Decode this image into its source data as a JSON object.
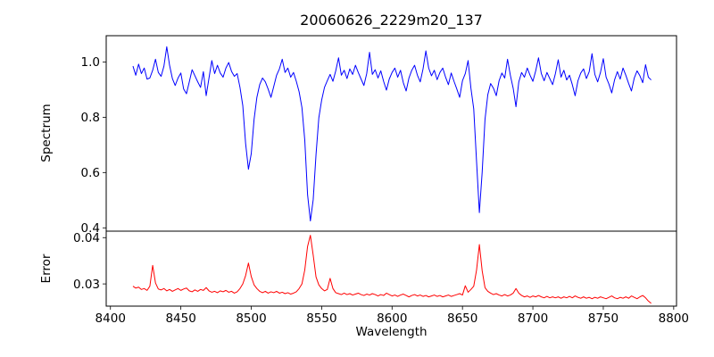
{
  "figure": {
    "background": "#ffffff",
    "text_color": "#000000"
  },
  "chart_data": [
    {
      "type": "line",
      "name": "spectrum",
      "title": "20060626_2229m20_137",
      "ylabel": "Spectrum",
      "color": "#0000ff",
      "line_width": 1,
      "grid": false,
      "legend": "none",
      "x_start": 8416,
      "x_step": 2,
      "xlim": [
        8397,
        8802
      ],
      "ylim": [
        0.388,
        1.095
      ],
      "yticks": [
        1.0,
        0.8,
        0.6,
        0.4
      ],
      "ytick_labels": [
        "1.0",
        "0.8",
        "0.6",
        "0.4"
      ],
      "absorption_lines_note": "Ca II triplet: deep minima near x=8498 (y~0.61), x=8542 (y~0.42), x=8662 (y~0.45)",
      "values": [
        0.985,
        0.952,
        0.992,
        0.958,
        0.978,
        0.938,
        0.942,
        0.97,
        1.01,
        0.962,
        0.948,
        0.985,
        1.055,
        0.988,
        0.94,
        0.915,
        0.942,
        0.96,
        0.902,
        0.885,
        0.928,
        0.972,
        0.95,
        0.928,
        0.908,
        0.965,
        0.878,
        0.942,
        1.005,
        0.958,
        0.988,
        0.96,
        0.945,
        0.978,
        0.998,
        0.966,
        0.948,
        0.958,
        0.908,
        0.842,
        0.705,
        0.612,
        0.668,
        0.792,
        0.872,
        0.918,
        0.942,
        0.928,
        0.902,
        0.872,
        0.912,
        0.952,
        0.975,
        1.01,
        0.962,
        0.978,
        0.945,
        0.962,
        0.93,
        0.892,
        0.835,
        0.718,
        0.52,
        0.425,
        0.502,
        0.665,
        0.798,
        0.862,
        0.908,
        0.932,
        0.955,
        0.93,
        0.968,
        1.015,
        0.952,
        0.97,
        0.94,
        0.975,
        0.955,
        0.988,
        0.962,
        0.938,
        0.915,
        0.958,
        1.035,
        0.955,
        0.972,
        0.942,
        0.968,
        0.93,
        0.898,
        0.938,
        0.962,
        0.978,
        0.945,
        0.97,
        0.925,
        0.895,
        0.942,
        0.97,
        0.988,
        0.952,
        0.928,
        0.975,
        1.04,
        0.978,
        0.95,
        0.97,
        0.936,
        0.962,
        0.978,
        0.945,
        0.918,
        0.96,
        0.93,
        0.902,
        0.872,
        0.932,
        0.958,
        1.005,
        0.905,
        0.83,
        0.64,
        0.455,
        0.602,
        0.792,
        0.882,
        0.922,
        0.905,
        0.878,
        0.932,
        0.96,
        0.942,
        1.01,
        0.952,
        0.905,
        0.838,
        0.928,
        0.962,
        0.945,
        0.978,
        0.952,
        0.93,
        0.968,
        1.015,
        0.958,
        0.932,
        0.962,
        0.94,
        0.918,
        0.958,
        1.008,
        0.945,
        0.97,
        0.935,
        0.952,
        0.918,
        0.878,
        0.932,
        0.96,
        0.975,
        0.94,
        0.965,
        1.03,
        0.955,
        0.928,
        0.962,
        1.012,
        0.945,
        0.92,
        0.888,
        0.935,
        0.965,
        0.938,
        0.978,
        0.952,
        0.922,
        0.895,
        0.942,
        0.968,
        0.95,
        0.925,
        0.99,
        0.945,
        0.935
      ]
    },
    {
      "type": "line",
      "name": "error",
      "ylabel": "Error",
      "xlabel": "Wavelength",
      "color": "#ff0000",
      "line_width": 1,
      "grid": false,
      "legend": "none",
      "x_start": 8416,
      "x_step": 2,
      "xlim": [
        8397,
        8802
      ],
      "ylim": [
        0.0252,
        0.0414
      ],
      "yticks": [
        0.04,
        0.03
      ],
      "ytick_labels": [
        "0.04",
        "0.03"
      ],
      "xticks": [
        8400,
        8450,
        8500,
        8550,
        8600,
        8650,
        8700,
        8750,
        8800
      ],
      "xtick_labels": [
        "8400",
        "8450",
        "8500",
        "8550",
        "8600",
        "8650",
        "8700",
        "8750",
        "8800"
      ],
      "spikes_note": "error spikes near x=8430 (0.034), 8498 (0.0345), 8542 (0.0405), 8662 (0.0385)",
      "values": [
        0.0295,
        0.0291,
        0.0293,
        0.0288,
        0.029,
        0.0286,
        0.0295,
        0.034,
        0.0302,
        0.0289,
        0.0287,
        0.029,
        0.0285,
        0.0288,
        0.0284,
        0.0287,
        0.029,
        0.0286,
        0.0289,
        0.0291,
        0.0285,
        0.0283,
        0.0287,
        0.0284,
        0.0288,
        0.0286,
        0.0292,
        0.0285,
        0.0282,
        0.0284,
        0.0281,
        0.0285,
        0.0283,
        0.0286,
        0.0282,
        0.0284,
        0.028,
        0.0283,
        0.029,
        0.03,
        0.0318,
        0.0345,
        0.0316,
        0.0298,
        0.029,
        0.0284,
        0.0281,
        0.0284,
        0.028,
        0.0283,
        0.0281,
        0.0284,
        0.028,
        0.0282,
        0.0279,
        0.0281,
        0.0278,
        0.028,
        0.0283,
        0.029,
        0.03,
        0.033,
        0.0381,
        0.0405,
        0.0362,
        0.0315,
        0.0298,
        0.029,
        0.0285,
        0.0288,
        0.0312,
        0.029,
        0.0281,
        0.0279,
        0.0277,
        0.028,
        0.0277,
        0.0279,
        0.0276,
        0.0278,
        0.028,
        0.0277,
        0.0275,
        0.0278,
        0.0276,
        0.0279,
        0.0277,
        0.0274,
        0.0277,
        0.0275,
        0.028,
        0.0277,
        0.0274,
        0.0276,
        0.0273,
        0.0276,
        0.0278,
        0.0275,
        0.0272,
        0.0275,
        0.0277,
        0.0274,
        0.0276,
        0.0273,
        0.0275,
        0.0272,
        0.0274,
        0.0276,
        0.0273,
        0.0275,
        0.0272,
        0.0274,
        0.0276,
        0.0273,
        0.0275,
        0.0277,
        0.0279,
        0.0276,
        0.0296,
        0.0282,
        0.0288,
        0.0295,
        0.033,
        0.0385,
        0.0328,
        0.0292,
        0.0284,
        0.028,
        0.0277,
        0.0279,
        0.0276,
        0.0274,
        0.0277,
        0.0274,
        0.0276,
        0.028,
        0.029,
        0.028,
        0.0275,
        0.0272,
        0.0274,
        0.0271,
        0.0274,
        0.0272,
        0.0275,
        0.0272,
        0.027,
        0.0273,
        0.027,
        0.0272,
        0.027,
        0.0272,
        0.0269,
        0.0272,
        0.027,
        0.0273,
        0.027,
        0.0274,
        0.0271,
        0.0269,
        0.0272,
        0.0269,
        0.0271,
        0.0268,
        0.0271,
        0.0269,
        0.0272,
        0.027,
        0.0268,
        0.0271,
        0.0274,
        0.027,
        0.0268,
        0.0271,
        0.0269,
        0.0272,
        0.0269,
        0.0274,
        0.0271,
        0.0268,
        0.0272,
        0.0275,
        0.027,
        0.0263,
        0.0258
      ]
    }
  ]
}
